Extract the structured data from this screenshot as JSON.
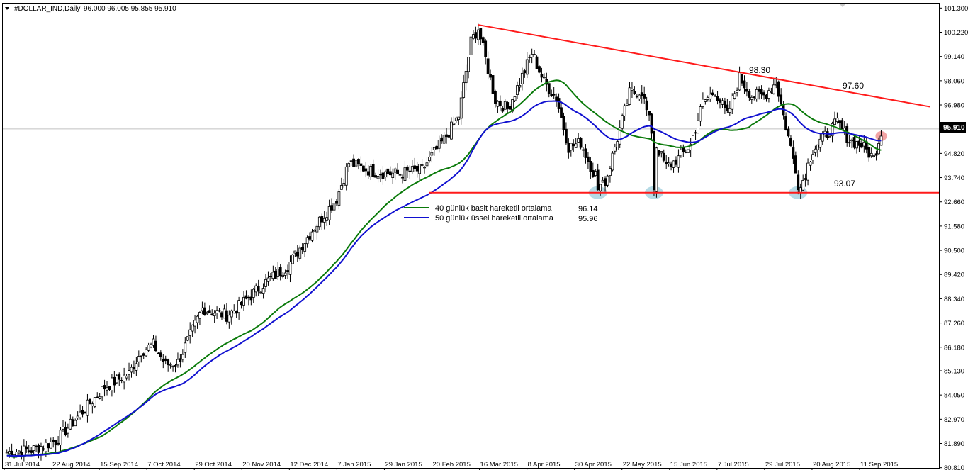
{
  "header": {
    "title": "#DOLLAR_IND,Daily",
    "ohlc": "96.000 96.005 95.855 95.910"
  },
  "colors": {
    "candle": "#000000",
    "sma": "#0a7a0a",
    "ema": "#1010d0",
    "trend": "#ff1a1a",
    "highlight_blue": "#a8d4e0",
    "highlight_red": "#f19a9a",
    "current_line": "#c0c0c0",
    "price_box": "#000000"
  },
  "chart_data": {
    "type": "candlestick",
    "title": "#DOLLAR_IND,Daily",
    "y_range": [
      80.8,
      101.5
    ],
    "y_ticks": [
      "101.300",
      "100.220",
      "99.140",
      "98.060",
      "96.980",
      "95.910",
      "94.820",
      "93.740",
      "92.660",
      "91.580",
      "90.500",
      "89.420",
      "88.340",
      "87.260",
      "86.180",
      "85.130",
      "84.050",
      "82.970",
      "81.890",
      "80.810"
    ],
    "x_ticks": [
      "31 Jul 2014",
      "22 Aug 2014",
      "15 Sep 2014",
      "7 Oct 2014",
      "29 Oct 2014",
      "20 Nov 2014",
      "12 Dec 2014",
      "7 Jan 2015",
      "29 Jan 2015",
      "20 Feb 2015",
      "16 Mar 2015",
      "8 Apr 2015",
      "30 Apr 2015",
      "22 May 2015",
      "15 Jun 2015",
      "7 Jul 2015",
      "29 Jul 2015",
      "20 Aug 2015",
      "11 Sep 2015"
    ],
    "current_price": "95.910",
    "close_anchors": [
      [
        0,
        81.5
      ],
      [
        10,
        81.6
      ],
      [
        20,
        82.0
      ],
      [
        30,
        83.2
      ],
      [
        40,
        84.4
      ],
      [
        50,
        85.0
      ],
      [
        55,
        86.0
      ],
      [
        60,
        86.3
      ],
      [
        65,
        85.4
      ],
      [
        70,
        85.5
      ],
      [
        80,
        87.9
      ],
      [
        90,
        87.6
      ],
      [
        95,
        88.0
      ],
      [
        105,
        89.0
      ],
      [
        115,
        89.8
      ],
      [
        125,
        91.4
      ],
      [
        135,
        92.8
      ],
      [
        140,
        94.4
      ],
      [
        150,
        94.0
      ],
      [
        160,
        93.9
      ],
      [
        170,
        94.1
      ],
      [
        180,
        95.6
      ],
      [
        185,
        96.5
      ],
      [
        190,
        99.8
      ],
      [
        193,
        100.4
      ],
      [
        200,
        97.2
      ],
      [
        205,
        96.8
      ],
      [
        210,
        98.0
      ],
      [
        215,
        99.3
      ],
      [
        220,
        98.0
      ],
      [
        225,
        97.3
      ],
      [
        230,
        95.1
      ],
      [
        235,
        95.3
      ],
      [
        240,
        94.0
      ],
      [
        245,
        93.5
      ],
      [
        250,
        95.5
      ],
      [
        255,
        97.5
      ],
      [
        260,
        97.6
      ],
      [
        265,
        95.4
      ],
      [
        270,
        94.2
      ],
      [
        275,
        94.6
      ],
      [
        280,
        95.2
      ],
      [
        285,
        97.1
      ],
      [
        290,
        97.6
      ],
      [
        295,
        96.5
      ],
      [
        300,
        98.2
      ],
      [
        305,
        97.4
      ],
      [
        310,
        97.4
      ],
      [
        315,
        98.0
      ],
      [
        318,
        96.5
      ],
      [
        322,
        94.6
      ],
      [
        325,
        93.3
      ],
      [
        330,
        95.0
      ],
      [
        335,
        95.6
      ],
      [
        340,
        96.2
      ],
      [
        345,
        95.4
      ],
      [
        350,
        95.2
      ],
      [
        355,
        94.6
      ],
      [
        358,
        95.8
      ]
    ],
    "series": [
      {
        "name": "40 günlük basit hareketli ortalama",
        "last_value": "96.14"
      },
      {
        "name": "50 günlük üssel hareketli ortalama",
        "last_value": "95.96"
      }
    ],
    "trendlines": [
      {
        "label": "98.30",
        "type": "resistance"
      },
      {
        "label": "97.60",
        "type": "resistance"
      },
      {
        "label": "93.07",
        "type": "support",
        "value": 93.07
      }
    ],
    "support_touch_indices": [
      242,
      265,
      324
    ],
    "resistance_line": {
      "start": [
        193,
        100.55
      ],
      "end": [
        378,
        96.9
      ]
    },
    "resistance_label_points": {
      "98.30": [
        298,
        98.35
      ],
      "97.60": [
        349,
        97.55
      ]
    },
    "support_line_start_index": 173,
    "red_marker_index": 358,
    "bars": 359
  }
}
